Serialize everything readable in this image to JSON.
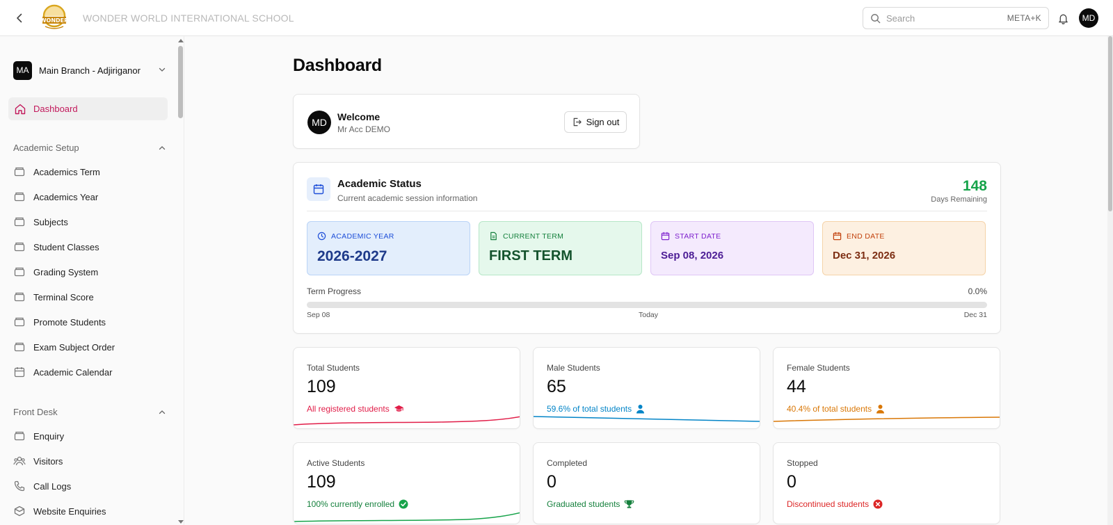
{
  "header": {
    "school_name": "WONDER WORLD INTERNATIONAL SCHOOL",
    "search_placeholder": "Search",
    "search_shortcut": "META+K",
    "avatar_initials": "MD"
  },
  "sidebar": {
    "branch": {
      "initials": "MA",
      "name": "Main Branch - Adjiriganor"
    },
    "active_item": "Dashboard",
    "sections": [
      {
        "title": "Academic Setup",
        "items": [
          {
            "label": "Academics Term",
            "icon": "box-icon"
          },
          {
            "label": "Academics Year",
            "icon": "box-icon"
          },
          {
            "label": "Subjects",
            "icon": "box-icon"
          },
          {
            "label": "Student Classes",
            "icon": "box-icon"
          },
          {
            "label": "Grading System",
            "icon": "box-icon"
          },
          {
            "label": "Terminal Score",
            "icon": "box-icon"
          },
          {
            "label": "Promote Students",
            "icon": "box-icon"
          },
          {
            "label": "Exam Subject Order",
            "icon": "box-icon"
          },
          {
            "label": "Academic Calendar",
            "icon": "calendar-icon"
          }
        ]
      },
      {
        "title": "Front Desk",
        "items": [
          {
            "label": "Enquiry",
            "icon": "box-icon"
          },
          {
            "label": "Visitors",
            "icon": "users-icon"
          },
          {
            "label": "Call Logs",
            "icon": "phone-icon"
          },
          {
            "label": "Website Enquiries",
            "icon": "box-icon"
          }
        ]
      }
    ]
  },
  "main": {
    "title": "Dashboard",
    "welcome": {
      "initials": "MD",
      "greeting": "Welcome",
      "user": "Mr Acc DEMO",
      "signout": "Sign out"
    },
    "academic_status": {
      "title": "Academic Status",
      "subtitle": "Current academic session information",
      "days_remaining": "148",
      "days_label": "Days Remaining",
      "academic_year_label": "ACADEMIC YEAR",
      "academic_year": "2026-2027",
      "current_term_label": "CURRENT TERM",
      "current_term": "FIRST TERM",
      "start_date_label": "START DATE",
      "start_date": "Sep 08, 2026",
      "end_date_label": "END DATE",
      "end_date": "Dec 31, 2026",
      "progress_label": "Term Progress",
      "progress_text": "0.0%",
      "progress_fraction": 0.0,
      "progress_start": "Sep 08",
      "progress_today": "Today",
      "progress_end": "Dec 31"
    },
    "stats": [
      {
        "label": "Total Students",
        "value": "109",
        "sub": "All registered students",
        "icon": "graduation-cap-icon",
        "color": "#e11d48"
      },
      {
        "label": "Male Students",
        "value": "65",
        "sub": "59.6% of total students",
        "icon": "person-icon",
        "color": "#0284c7"
      },
      {
        "label": "Female Students",
        "value": "44",
        "sub": "40.4% of total students",
        "icon": "person-icon",
        "color": "#d97706"
      },
      {
        "label": "Active Students",
        "value": "109",
        "sub": "100% currently enrolled",
        "icon": "check-circle-icon",
        "color": "#16a34a"
      },
      {
        "label": "Completed",
        "value": "0",
        "sub": "Graduated students",
        "icon": "trophy-icon",
        "color": "#15803d"
      },
      {
        "label": "Stopped",
        "value": "0",
        "sub": "Discontinued students",
        "icon": "x-circle-icon",
        "color": "#dc2626"
      }
    ]
  }
}
